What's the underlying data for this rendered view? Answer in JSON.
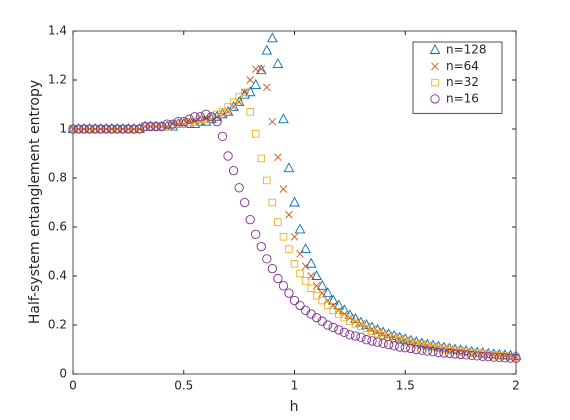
{
  "chart_data": {
    "type": "scatter",
    "xlabel": "h",
    "ylabel": "Half-system entanglement entropy",
    "xlim": [
      0,
      2
    ],
    "ylim": [
      0,
      1.4
    ],
    "xticks": [
      0,
      0.5,
      1,
      1.5,
      2
    ],
    "yticks": [
      0,
      0.2,
      0.4,
      0.6,
      0.8,
      1,
      1.2,
      1.4
    ],
    "legend": "upper right",
    "x": [
      0,
      0.025,
      0.05,
      0.075,
      0.1,
      0.125,
      0.15,
      0.175,
      0.2,
      0.225,
      0.25,
      0.275,
      0.3,
      0.325,
      0.35,
      0.375,
      0.4,
      0.425,
      0.45,
      0.475,
      0.5,
      0.525,
      0.55,
      0.575,
      0.6,
      0.625,
      0.65,
      0.675,
      0.7,
      0.725,
      0.75,
      0.775,
      0.8,
      0.825,
      0.85,
      0.875,
      0.9,
      0.925,
      0.95,
      0.975,
      1,
      1.025,
      1.05,
      1.075,
      1.1,
      1.125,
      1.15,
      1.175,
      1.2,
      1.225,
      1.25,
      1.275,
      1.3,
      1.325,
      1.35,
      1.375,
      1.4,
      1.425,
      1.45,
      1.475,
      1.5,
      1.525,
      1.55,
      1.575,
      1.6,
      1.625,
      1.65,
      1.675,
      1.7,
      1.725,
      1.75,
      1.775,
      1.8,
      1.825,
      1.85,
      1.875,
      1.9,
      1.925,
      1.95,
      1.975,
      2
    ],
    "series": [
      {
        "name": "n=128",
        "color": "#0072bd",
        "marker": "triangle",
        "values": [
          1,
          1,
          1,
          1,
          1,
          1,
          1,
          1,
          1,
          1,
          1,
          1,
          1,
          1.01,
          1.01,
          1.01,
          1.01,
          1.01,
          1.01,
          1.02,
          1.02,
          1.02,
          1.02,
          1.03,
          1.03,
          1.04,
          1.05,
          1.06,
          1.07,
          1.09,
          1.11,
          1.14,
          1.15,
          1.18,
          1.24,
          1.32,
          1.37,
          1.265,
          1.04,
          0.84,
          0.7,
          0.59,
          0.51,
          0.45,
          0.4,
          0.36,
          0.33,
          0.3,
          0.28,
          0.26,
          0.24,
          0.225,
          0.21,
          0.2,
          0.19,
          0.18,
          0.17,
          0.162,
          0.155,
          0.148,
          0.142,
          0.136,
          0.13,
          0.125,
          0.12,
          0.116,
          0.112,
          0.108,
          0.104,
          0.1,
          0.097,
          0.094,
          0.091,
          0.088,
          0.086,
          0.083,
          0.081,
          0.079,
          0.077,
          0.075,
          0.073
        ]
      },
      {
        "name": "n=64",
        "color": "#d95319",
        "marker": "cross",
        "values": [
          1,
          1,
          1,
          1,
          1,
          1,
          1,
          1,
          1,
          1,
          1,
          1,
          1,
          1.01,
          1.01,
          1.01,
          1.01,
          1.01,
          1.02,
          1.02,
          1.02,
          1.03,
          1.03,
          1.03,
          1.04,
          1.04,
          1.05,
          1.06,
          1.07,
          1.09,
          1.11,
          1.15,
          1.2,
          1.245,
          1.245,
          1.17,
          1.03,
          0.885,
          0.755,
          0.65,
          0.56,
          0.49,
          0.44,
          0.4,
          0.36,
          0.33,
          0.3,
          0.28,
          0.26,
          0.245,
          0.23,
          0.215,
          0.205,
          0.193,
          0.183,
          0.174,
          0.165,
          0.158,
          0.151,
          0.144,
          0.138,
          0.132,
          0.127,
          0.122,
          0.117,
          0.113,
          0.109,
          0.105,
          0.101,
          0.098,
          0.095,
          0.092,
          0.089,
          0.086,
          0.084,
          0.081,
          0.079,
          0.077,
          0.075,
          0.073,
          0.071
        ]
      },
      {
        "name": "n=32",
        "color": "#edb120",
        "marker": "square",
        "values": [
          1,
          1,
          1,
          1,
          1,
          1,
          1,
          1,
          1,
          1,
          1,
          1,
          1,
          1.01,
          1.01,
          1.01,
          1.01,
          1.01,
          1.02,
          1.02,
          1.02,
          1.03,
          1.03,
          1.04,
          1.04,
          1.05,
          1.06,
          1.07,
          1.09,
          1.11,
          1.13,
          1.15,
          1.07,
          0.98,
          0.88,
          0.79,
          0.7,
          0.62,
          0.56,
          0.51,
          0.45,
          0.41,
          0.38,
          0.35,
          0.32,
          0.3,
          0.28,
          0.26,
          0.245,
          0.23,
          0.215,
          0.205,
          0.195,
          0.185,
          0.175,
          0.165,
          0.158,
          0.151,
          0.144,
          0.138,
          0.132,
          0.127,
          0.122,
          0.117,
          0.113,
          0.109,
          0.105,
          0.101,
          0.098,
          0.095,
          0.092,
          0.089,
          0.086,
          0.084,
          0.081,
          0.079,
          0.077,
          0.075,
          0.073,
          0.071,
          0.069
        ]
      },
      {
        "name": "n=16",
        "color": "#7e2f8e",
        "marker": "circle",
        "values": [
          1,
          1,
          1,
          1,
          1,
          1,
          1,
          1,
          1,
          1,
          1,
          1,
          1,
          1.01,
          1.01,
          1.01,
          1.01,
          1.02,
          1.02,
          1.03,
          1.03,
          1.04,
          1.05,
          1.05,
          1.06,
          1.05,
          1.03,
          0.97,
          0.89,
          0.83,
          0.76,
          0.7,
          0.63,
          0.57,
          0.52,
          0.47,
          0.43,
          0.39,
          0.36,
          0.33,
          0.3,
          0.28,
          0.26,
          0.245,
          0.23,
          0.215,
          0.2,
          0.19,
          0.18,
          0.17,
          0.16,
          0.155,
          0.15,
          0.14,
          0.135,
          0.13,
          0.125,
          0.12,
          0.115,
          0.11,
          0.107,
          0.104,
          0.1,
          0.097,
          0.094,
          0.091,
          0.088,
          0.086,
          0.084,
          0.082,
          0.08,
          0.078,
          0.076,
          0.074,
          0.072,
          0.071,
          0.069,
          0.068,
          0.066,
          0.065,
          0.064
        ]
      }
    ]
  }
}
